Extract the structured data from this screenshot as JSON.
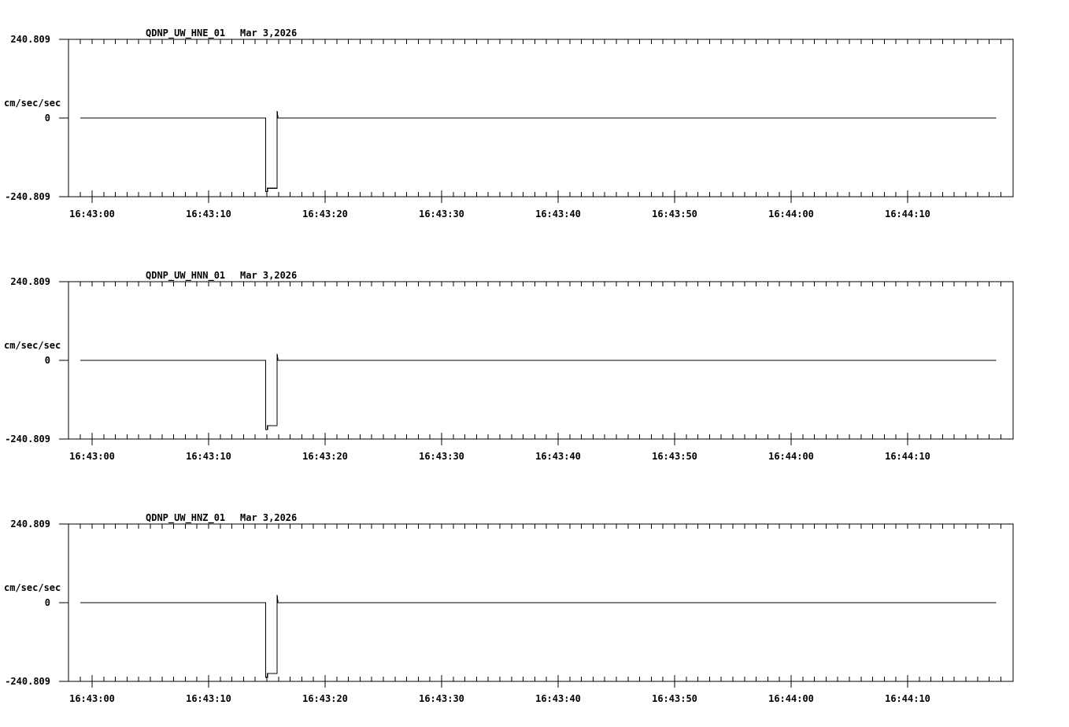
{
  "page": {
    "background_color": "#ffffff",
    "line_color": "#000000",
    "text_color": "#000000"
  },
  "chart_data": [
    {
      "type": "line",
      "title": "QDNP_UW_HNE_01",
      "date": "Mar 3,2026",
      "ylabel": "cm/sec/sec",
      "y_ticks": [
        "240.809",
        "0",
        "-240.809"
      ],
      "ylim": [
        -240.809,
        240.809
      ],
      "x_tick_labels": [
        "16:43:00",
        "16:43:10",
        "16:43:20",
        "16:43:30",
        "16:43:40",
        "16:43:50",
        "16:44:00",
        "16:44:10"
      ],
      "x_label_times_s": [
        0,
        10,
        20,
        30,
        40,
        50,
        60,
        70
      ],
      "x_minor_every_s": 1,
      "x_major_every_s": 10,
      "t_axis_range_s": [
        -2,
        79
      ],
      "grid": false,
      "legend": "none",
      "trace": {
        "baseline_value": 0,
        "pulse_time": "16:43:15",
        "points_t_s": [
          -1,
          14.9,
          14.9,
          15.05,
          15.05,
          15.88,
          15.88,
          15.95,
          77.6
        ],
        "points_v": [
          0,
          0,
          -225,
          -225,
          -215,
          -215,
          22,
          0,
          0
        ]
      }
    },
    {
      "type": "line",
      "title": "QDNP_UW_HNN_01",
      "date": "Mar 3,2026",
      "ylabel": "cm/sec/sec",
      "y_ticks": [
        "240.809",
        "0",
        "-240.809"
      ],
      "ylim": [
        -240.809,
        240.809
      ],
      "x_tick_labels": [
        "16:43:00",
        "16:43:10",
        "16:43:20",
        "16:43:30",
        "16:43:40",
        "16:43:50",
        "16:44:00",
        "16:44:10"
      ],
      "x_label_times_s": [
        0,
        10,
        20,
        30,
        40,
        50,
        60,
        70
      ],
      "x_minor_every_s": 1,
      "x_major_every_s": 10,
      "t_axis_range_s": [
        -2,
        79
      ],
      "grid": false,
      "legend": "none",
      "trace": {
        "baseline_value": 0,
        "pulse_time": "16:43:15",
        "points_t_s": [
          -1,
          14.9,
          14.9,
          15.05,
          15.05,
          15.88,
          15.88,
          15.95,
          77.6
        ],
        "points_v": [
          0,
          0,
          -212,
          -212,
          -200,
          -200,
          20,
          0,
          0
        ]
      }
    },
    {
      "type": "line",
      "title": "QDNP_UW_HNZ_01",
      "date": "Mar 3,2026",
      "ylabel": "cm/sec/sec",
      "y_ticks": [
        "240.809",
        "0",
        "-240.809"
      ],
      "ylim": [
        -240.809,
        240.809
      ],
      "x_tick_labels": [
        "16:43:00",
        "16:43:10",
        "16:43:20",
        "16:43:30",
        "16:43:40",
        "16:43:50",
        "16:44:00",
        "16:44:10"
      ],
      "x_label_times_s": [
        0,
        10,
        20,
        30,
        40,
        50,
        60,
        70
      ],
      "x_minor_every_s": 1,
      "x_major_every_s": 10,
      "t_axis_range_s": [
        -2,
        79
      ],
      "grid": false,
      "legend": "none",
      "trace": {
        "baseline_value": 0,
        "pulse_time": "16:43:15",
        "points_t_s": [
          -1,
          14.9,
          14.9,
          15.05,
          15.05,
          15.88,
          15.88,
          15.95,
          77.6
        ],
        "points_v": [
          0,
          0,
          -228,
          -228,
          -217,
          -217,
          24,
          0,
          0
        ]
      }
    }
  ]
}
